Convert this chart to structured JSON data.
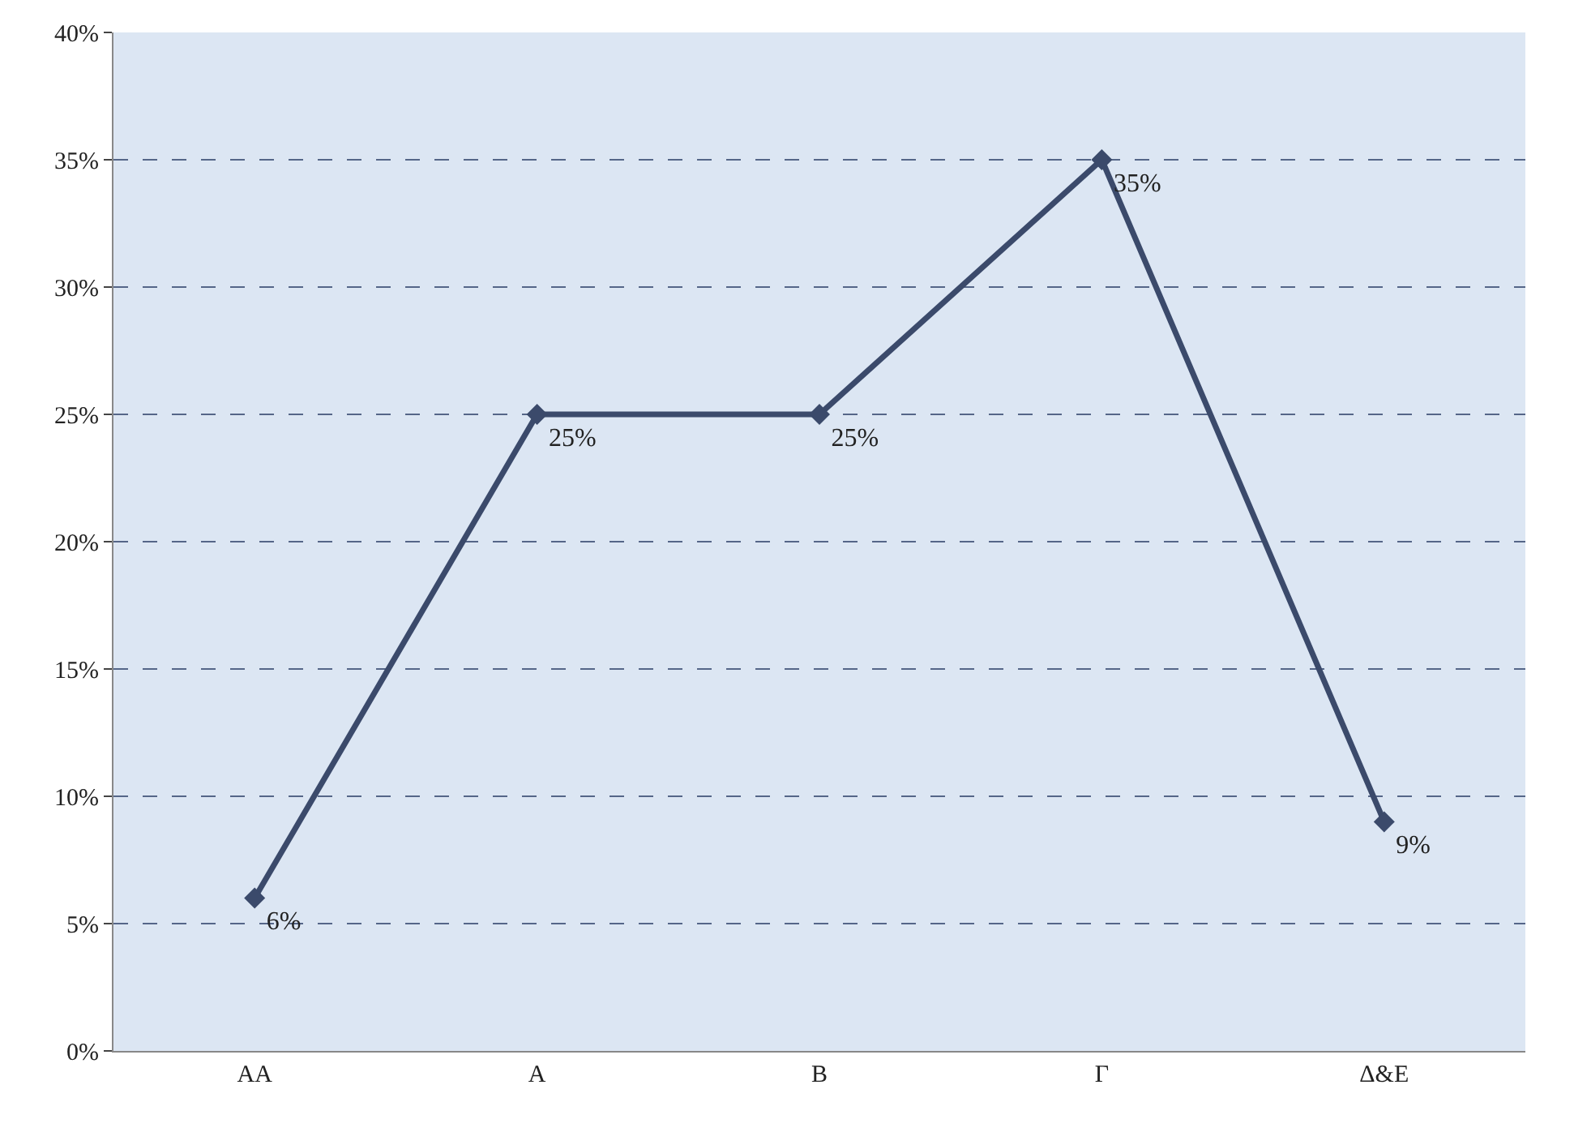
{
  "chart_data": {
    "type": "line",
    "categories": [
      "ΑΑ",
      "Α",
      "Β",
      "Γ",
      "Δ&Ε"
    ],
    "series": [
      {
        "color": "#3b4a6b",
        "values": [
          6,
          25,
          25,
          35,
          9
        ],
        "value_labels": [
          "6%",
          "25%",
          "25%",
          "35%",
          "9%"
        ]
      }
    ],
    "ylim": [
      0,
      40
    ],
    "yticks": [
      {
        "value": 0,
        "label": "0%"
      },
      {
        "value": 5,
        "label": "5%"
      },
      {
        "value": 10,
        "label": "10%"
      },
      {
        "value": 15,
        "label": "15%"
      },
      {
        "value": 20,
        "label": "20%"
      },
      {
        "value": 25,
        "label": "25%"
      },
      {
        "value": 30,
        "label": "30%"
      },
      {
        "value": 35,
        "label": "35%"
      },
      {
        "value": 40,
        "label": "40%"
      }
    ],
    "grid": "y",
    "legend": false,
    "marker": "diamond",
    "line_style": "solid"
  }
}
